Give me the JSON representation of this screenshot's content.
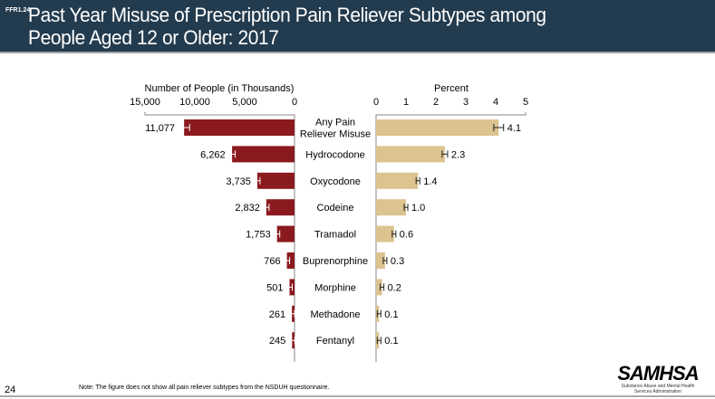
{
  "header": {
    "code": "FFR1.24",
    "title_line1": "Past Year Misuse of Prescription Pain Reliever Subtypes among",
    "title_line2": "People Aged 12 or Older: 2017"
  },
  "footer": {
    "page_number": "24",
    "note": "Note: The figure does not show all pain reliever subtypes from the NSDUH questionnaire.",
    "logo": "SAMHSA",
    "logo_sub1": "Substance Abuse and Mental Health",
    "logo_sub2": "Services Administration"
  },
  "colors": {
    "left": "#8b1a1f",
    "right": "#dcc38f",
    "header": "#233b4e"
  },
  "chart_data": [
    {
      "type": "bar",
      "orientation": "horizontal-reversed",
      "xlabel": "Number of People (in Thousands)",
      "xlim": [
        0,
        15000
      ],
      "ticks": [
        15000,
        10000,
        5000,
        0
      ],
      "tick_labels": [
        "15,000",
        "10,000",
        "5,000",
        "0"
      ],
      "categories": [
        "Any Pain Reliever Misuse",
        "Hydrocodone",
        "Oxycodone",
        "Codeine",
        "Tramadol",
        "Buprenorphine",
        "Morphine",
        "Methadone",
        "Fentanyl"
      ],
      "values": [
        11077,
        6262,
        3735,
        2832,
        1753,
        766,
        501,
        261,
        245
      ],
      "labels": [
        "11,077",
        "6,262",
        "3,735",
        "2,832",
        "1,753",
        "766",
        "501",
        "261",
        "245"
      ]
    },
    {
      "type": "bar",
      "orientation": "horizontal",
      "xlabel": "Percent",
      "xlim": [
        0,
        5
      ],
      "ticks": [
        0,
        1,
        2,
        3,
        4,
        5
      ],
      "tick_labels": [
        "0",
        "1",
        "2",
        "3",
        "4",
        "5"
      ],
      "values": [
        4.1,
        2.3,
        1.4,
        1.0,
        0.6,
        0.3,
        0.2,
        0.1,
        0.1
      ],
      "labels": [
        "4.1",
        "2.3",
        "1.4",
        "1.0",
        "0.6",
        "0.3",
        "0.2",
        "0.1",
        "0.1"
      ]
    }
  ],
  "category_display": [
    [
      "Any Pain",
      "Reliever Misuse"
    ],
    [
      "Hydrocodone"
    ],
    [
      "Oxycodone"
    ],
    [
      "Codeine"
    ],
    [
      "Tramadol"
    ],
    [
      "Buprenorphine"
    ],
    [
      "Morphine"
    ],
    [
      "Methadone"
    ],
    [
      "Fentanyl"
    ]
  ]
}
